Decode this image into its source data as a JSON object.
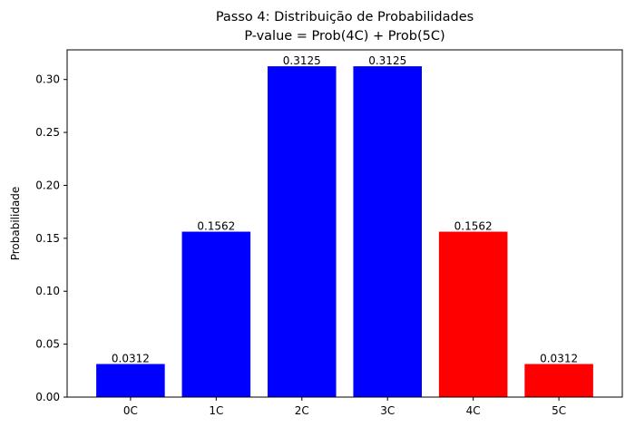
{
  "chart_data": {
    "type": "bar",
    "title_line1": "Passo 4: Distribuição de Probabilidades",
    "title_line2": "P-value = Prob(4C) + Prob(5C)",
    "xlabel": "",
    "ylabel": "Probabilidade",
    "categories": [
      "0C",
      "1C",
      "2C",
      "3C",
      "4C",
      "5C"
    ],
    "values": [
      0.03125,
      0.15625,
      0.3125,
      0.3125,
      0.15625,
      0.03125
    ],
    "data_labels": [
      "0.0312",
      "0.1562",
      "0.3125",
      "0.3125",
      "0.1562",
      "0.0312"
    ],
    "colors": [
      "#0000ff",
      "#0000ff",
      "#0000ff",
      "#0000ff",
      "#ff0000",
      "#ff0000"
    ],
    "ylim": [
      0,
      0.328
    ],
    "yticks": [
      0.0,
      0.05,
      0.1,
      0.15,
      0.2,
      0.25,
      0.3
    ],
    "ytick_labels": [
      "0.00",
      "0.05",
      "0.10",
      "0.15",
      "0.20",
      "0.25",
      "0.30"
    ],
    "grid": false,
    "legend": "none"
  }
}
